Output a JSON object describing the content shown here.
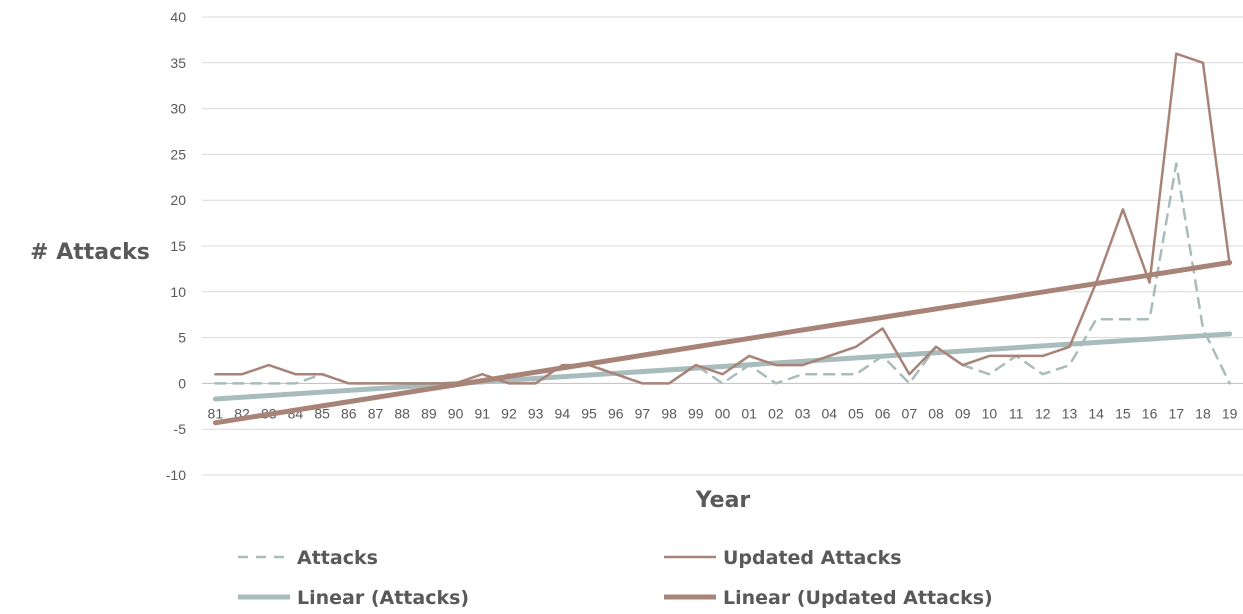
{
  "chart_data": {
    "type": "line",
    "title": "",
    "xlabel": "Year",
    "ylabel": "# Attacks",
    "ylim": [
      -10,
      40
    ],
    "yticks": [
      "40",
      "35",
      "30",
      "25",
      "20",
      "15",
      "10",
      "5",
      "0",
      "-5",
      "-10"
    ],
    "categories": [
      "81",
      "82",
      "83",
      "84",
      "85",
      "86",
      "87",
      "88",
      "89",
      "90",
      "91",
      "92",
      "93",
      "94",
      "95",
      "96",
      "97",
      "98",
      "99",
      "00",
      "01",
      "02",
      "03",
      "04",
      "05",
      "06",
      "07",
      "08",
      "09",
      "10",
      "11",
      "12",
      "13",
      "14",
      "15",
      "16",
      "17",
      "18",
      "19"
    ],
    "grid": true,
    "legend_position": "bottom",
    "series": [
      {
        "name": "Attacks",
        "style": "dashed",
        "color": "#a8bcbc",
        "values": [
          0,
          0,
          0,
          0,
          1,
          0,
          0,
          0,
          0,
          0,
          0,
          1,
          0,
          2,
          2,
          1,
          0,
          0,
          2,
          0,
          2,
          0,
          1,
          1,
          1,
          3,
          0,
          4,
          2,
          1,
          3,
          1,
          2,
          7,
          7,
          7,
          24,
          6,
          0
        ]
      },
      {
        "name": "Updated Attacks",
        "style": "solid",
        "color": "#a88478",
        "values": [
          1,
          1,
          2,
          1,
          1,
          0,
          0,
          0,
          0,
          0,
          1,
          0,
          0,
          2,
          2,
          1,
          0,
          0,
          2,
          1,
          3,
          2,
          2,
          3,
          4,
          6,
          1,
          4,
          2,
          3,
          3,
          3,
          4,
          11,
          19,
          11,
          36,
          35,
          13
        ]
      },
      {
        "name": "Linear (Attacks)",
        "style": "trend",
        "color": "#a8bcbc",
        "from": -1.7,
        "to": 5.4
      },
      {
        "name": "Linear (Updated Attacks)",
        "style": "trend",
        "color": "#a88478",
        "from": -4.3,
        "to": 13.2
      }
    ]
  }
}
